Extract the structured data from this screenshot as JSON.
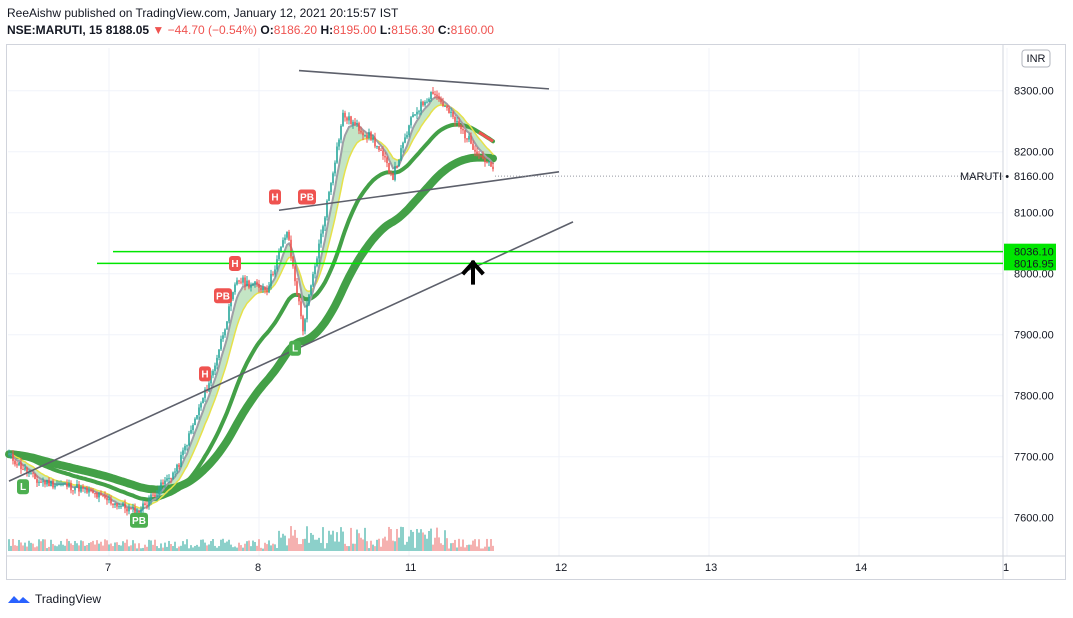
{
  "header": {
    "line1": "ReeAishw published on TradingView.com, January 12, 2021 20:15:57 IST",
    "symbol": "NSE:MARUTI, 15",
    "price": "8188.05",
    "change": "▼ −44.70 (−0.54%)",
    "open_label": "O:",
    "open": "8186.20",
    "high_label": "H:",
    "high": "8195.00",
    "low_label": "L:",
    "low": "8156.30",
    "close_label": "C:",
    "close": "8160.00"
  },
  "footer": {
    "brand": "TradingView"
  },
  "chart_data": {
    "type": "candlestick",
    "currency": "INR",
    "symbol_label": "MARUTI",
    "last_price": 8160.0,
    "ylim": [
      7570,
      8370
    ],
    "y_ticks": [
      7600,
      7700,
      7800,
      7900,
      8000,
      8100,
      8200,
      8300
    ],
    "y_tick_labels": [
      "7600.00",
      "7700.00",
      "7800.00",
      "7900.00",
      "8000.00",
      "8100.00",
      "8200.00",
      "8300.00"
    ],
    "x_ticks": [
      "7",
      "8",
      "11",
      "12",
      "13",
      "14",
      "1"
    ],
    "price_labels": [
      {
        "value": 8036.1,
        "text": "8036.10"
      },
      {
        "value": 8016.95,
        "text": "8016.95"
      },
      {
        "value": 8160.0,
        "text": "8160.00"
      }
    ],
    "hlines": [
      8036.1,
      8016.95
    ],
    "markers": [
      {
        "label": "H",
        "bar": 98,
        "value": 7835,
        "color": "#ef5350"
      },
      {
        "label": "PB",
        "bar": 107,
        "value": 7963,
        "color": "#ef5350"
      },
      {
        "label": "H",
        "bar": 113,
        "value": 8016,
        "color": "#ef5350"
      },
      {
        "label": "H",
        "bar": 133,
        "value": 8125,
        "color": "#ef5350"
      },
      {
        "label": "PB",
        "bar": 149,
        "value": 8125,
        "color": "#ef5350"
      },
      {
        "label": "L",
        "bar": 143,
        "value": 7877,
        "color": "#4caf50"
      },
      {
        "label": "L",
        "bar": 7,
        "value": 7650,
        "color": "#4caf50"
      },
      {
        "label": "PB",
        "bar": 65,
        "value": 7595,
        "color": "#4caf50"
      }
    ],
    "trendlines": [
      {
        "x1": 145,
        "y1": 8333,
        "x2": 270,
        "y2": 8303,
        "color": "#5d606b"
      },
      {
        "x1": 135,
        "y1": 8104,
        "x2": 275,
        "y2": 8167,
        "color": "#5d606b"
      },
      {
        "x1": 0,
        "y1": 7660,
        "x2": 282,
        "y2": 8085,
        "color": "#5d606b"
      }
    ],
    "arrow": {
      "bar": 232,
      "value": 8005,
      "direction": "up"
    },
    "segments": [
      {
        "bars": 15,
        "start": 7705,
        "end": 7660
      },
      {
        "bars": 20,
        "start": 7660,
        "end": 7650
      },
      {
        "bars": 30,
        "start": 7650,
        "end": 7608
      },
      {
        "bars": 20,
        "start": 7608,
        "end": 7680
      },
      {
        "bars": 18,
        "start": 7680,
        "end": 7840
      },
      {
        "bars": 12,
        "start": 7840,
        "end": 7990
      },
      {
        "bars": 15,
        "start": 7990,
        "end": 7975
      },
      {
        "bars": 10,
        "start": 7975,
        "end": 8070
      },
      {
        "bars": 8,
        "start": 8070,
        "end": 7910
      },
      {
        "bars": 10,
        "start": 7910,
        "end": 8080
      },
      {
        "bars": 10,
        "start": 8080,
        "end": 8260
      },
      {
        "bars": 15,
        "start": 8260,
        "end": 8220
      },
      {
        "bars": 10,
        "start": 8220,
        "end": 8160
      },
      {
        "bars": 10,
        "start": 8160,
        "end": 8260
      },
      {
        "bars": 10,
        "start": 8260,
        "end": 8300
      },
      {
        "bars": 20,
        "start": 8300,
        "end": 8210
      },
      {
        "bars": 10,
        "start": 8210,
        "end": 8170
      }
    ],
    "volume_range": [
      0.8,
      5.5
    ]
  }
}
